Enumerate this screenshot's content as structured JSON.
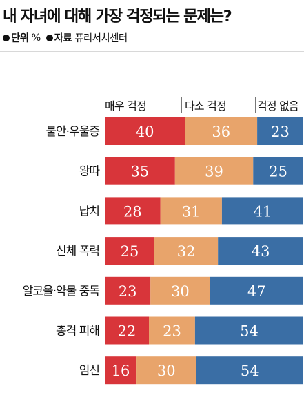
{
  "title": "내 자녀에 대해 가장 걱정되는 문제는?",
  "unit_key": "단위",
  "unit_value": "%",
  "source_key": "자료",
  "source_value": "퓨리서치센터",
  "colors": {
    "매우 걱정": "#d8353a",
    "다소 걱정": "#e8a46b",
    "걱정 없음": "#3a6ea5"
  },
  "chart_data": {
    "type": "bar",
    "orientation": "horizontal",
    "stacked": true,
    "unit": "%",
    "categories": [
      "불안·우울증",
      "왕따",
      "납치",
      "신체 폭력",
      "알코올·약물 중독",
      "총격 피해",
      "임신"
    ],
    "series": [
      {
        "name": "매우 걱정",
        "values": [
          40,
          35,
          28,
          25,
          23,
          22,
          16
        ]
      },
      {
        "name": "다소 걱정",
        "values": [
          36,
          39,
          31,
          32,
          30,
          23,
          30
        ]
      },
      {
        "name": "걱정 없음",
        "values": [
          23,
          25,
          41,
          43,
          47,
          54,
          54
        ]
      }
    ],
    "title": "내 자녀에 대해 가장 걱정되는 문제는?",
    "legend_position": "top"
  }
}
